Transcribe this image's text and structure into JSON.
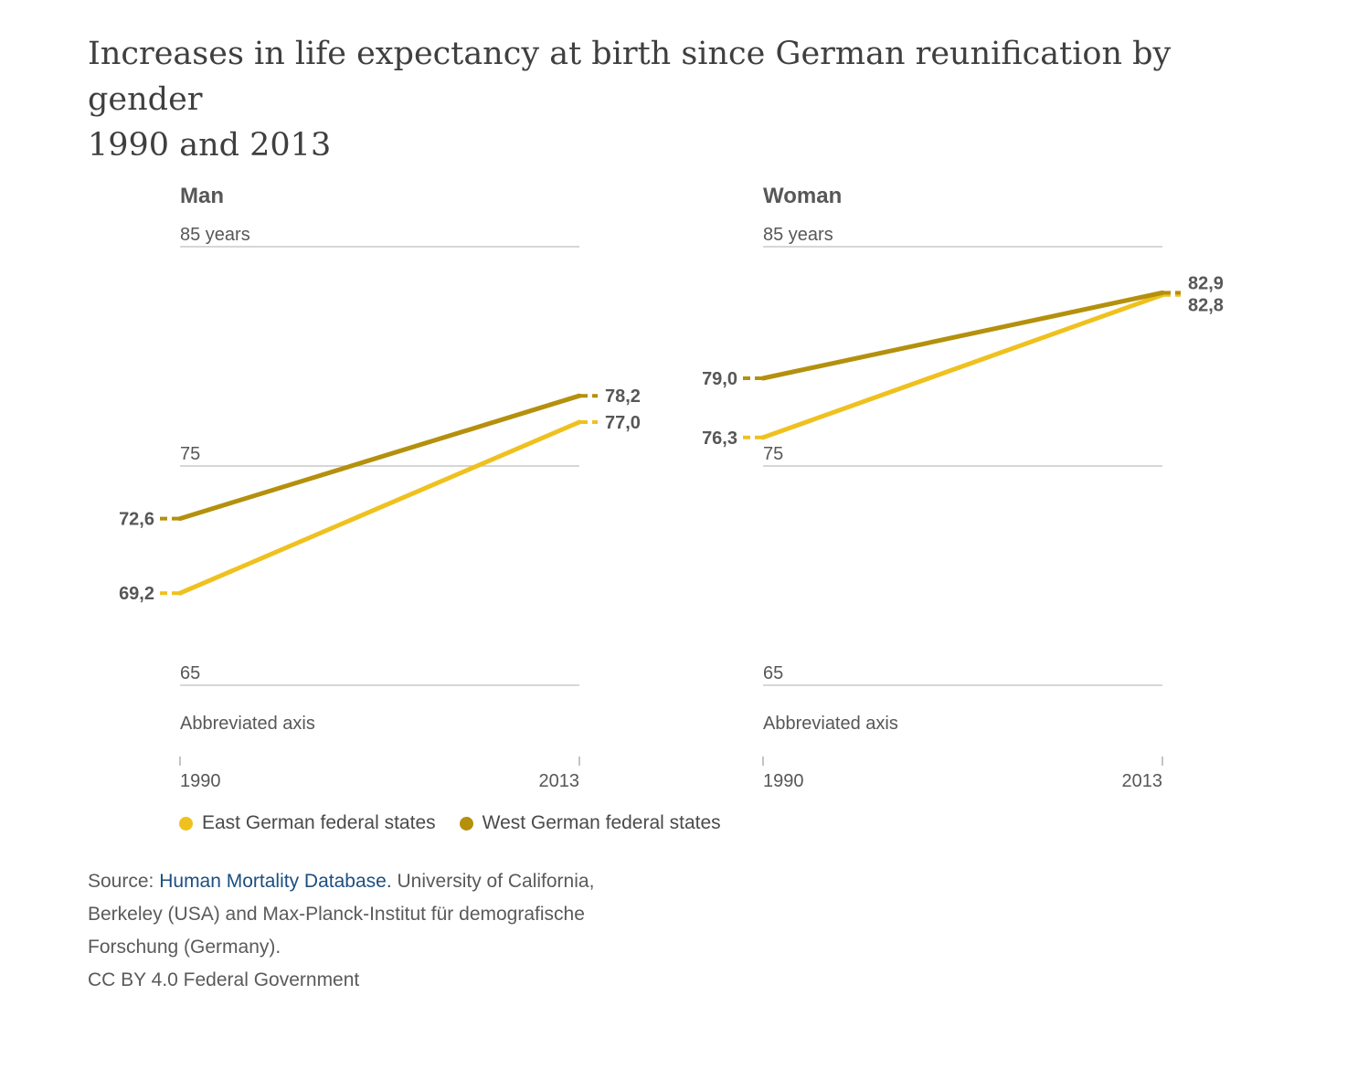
{
  "title_line1": "Increases in life expectancy at birth since German reunification by gender",
  "title_line2": "1990 and 2013",
  "colors": {
    "east": "#efc11f",
    "west": "#b4900d",
    "grid": "#c8c8c8",
    "text": "#575757"
  },
  "chart_data": [
    {
      "type": "line",
      "panel_title": "Man",
      "x": [
        "1990",
        "2013"
      ],
      "y_ticks": [
        "85 years",
        "75",
        "65"
      ],
      "y_tick_values": [
        85,
        75,
        65
      ],
      "ylim": [
        65,
        85
      ],
      "axis_note": "Abbreviated axis",
      "grid": true,
      "series": [
        {
          "name": "West German federal states",
          "values": [
            72.6,
            78.2
          ],
          "labels": [
            "72,6",
            "78,2"
          ]
        },
        {
          "name": "East German federal states",
          "values": [
            69.2,
            77.0
          ],
          "labels": [
            "69,2",
            "77,0"
          ]
        }
      ]
    },
    {
      "type": "line",
      "panel_title": "Woman",
      "x": [
        "1990",
        "2013"
      ],
      "y_ticks": [
        "85 years",
        "75",
        "65"
      ],
      "y_tick_values": [
        85,
        75,
        65
      ],
      "ylim": [
        65,
        85
      ],
      "axis_note": "Abbreviated axis",
      "grid": true,
      "series": [
        {
          "name": "West German federal states",
          "values": [
            79.0,
            82.9
          ],
          "labels": [
            "79,0",
            "82,9"
          ]
        },
        {
          "name": "East German federal states",
          "values": [
            76.3,
            82.8
          ],
          "labels": [
            "76,3",
            "82,8"
          ]
        }
      ]
    }
  ],
  "legend": {
    "position": "bottom-left",
    "items": [
      "East German federal states",
      "West German federal states"
    ]
  },
  "source": {
    "prefix": "Source: ",
    "link": "Human Mortality Database.",
    "rest1": " University of California,",
    "line2": "Berkeley (USA) and Max-Planck-Institut für demografische",
    "line3": "Forschung (Germany).",
    "license": "CC BY 4.0 Federal Government"
  }
}
